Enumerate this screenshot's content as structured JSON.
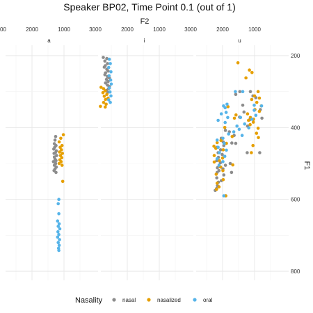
{
  "chart_data": {
    "type": "scatter",
    "title": "Speaker BP02, Time Point 0.1 (out of 1)",
    "xlabel": "F2",
    "ylabel": "F1",
    "x_reversed": true,
    "y_reversed": true,
    "xlim": [
      2000,
      3100
    ],
    "ylim": [
      180,
      820
    ],
    "x_ticks": [
      3000,
      2000,
      1000
    ],
    "y_ticks": [
      200,
      400,
      600,
      800
    ],
    "panels": [
      "a",
      "i",
      "u"
    ],
    "series_names": [
      "nasal",
      "nasalized",
      "oral"
    ],
    "legend_title": "Nasality",
    "legend_position": "bottom",
    "colors": {
      "nasal": "#8c8c8c",
      "nasalized": "#e69f00",
      "oral": "#56b4e9"
    },
    "points": {
      "a": {
        "nasal": [
          [
            1260,
            425
          ],
          [
            1280,
            435
          ],
          [
            1300,
            445
          ],
          [
            1250,
            450
          ],
          [
            1290,
            455
          ],
          [
            1320,
            460
          ],
          [
            1240,
            465
          ],
          [
            1270,
            470
          ],
          [
            1310,
            472
          ],
          [
            1230,
            478
          ],
          [
            1300,
            482
          ],
          [
            1280,
            488
          ],
          [
            1250,
            492
          ],
          [
            1330,
            495
          ],
          [
            1260,
            500
          ],
          [
            1300,
            505
          ],
          [
            1240,
            510
          ],
          [
            1280,
            515
          ],
          [
            1310,
            520
          ],
          [
            1250,
            525
          ]
        ],
        "nasalized": [
          [
            1020,
            420
          ],
          [
            1100,
            430
          ],
          [
            1150,
            440
          ],
          [
            1060,
            450
          ],
          [
            1120,
            455
          ],
          [
            1080,
            462
          ],
          [
            1140,
            468
          ],
          [
            1050,
            472
          ],
          [
            1110,
            478
          ],
          [
            1070,
            484
          ],
          [
            1130,
            490
          ],
          [
            1090,
            495
          ],
          [
            1150,
            500
          ],
          [
            1060,
            505
          ],
          [
            1040,
            550
          ]
        ],
        "oral": [
          [
            1160,
            600
          ],
          [
            1180,
            612
          ],
          [
            1160,
            640
          ],
          [
            1200,
            660
          ],
          [
            1150,
            668
          ],
          [
            1180,
            675
          ],
          [
            1130,
            682
          ],
          [
            1190,
            690
          ],
          [
            1160,
            698
          ],
          [
            1200,
            705
          ],
          [
            1140,
            712
          ],
          [
            1180,
            720
          ],
          [
            1150,
            728
          ],
          [
            1170,
            736
          ],
          [
            1160,
            742
          ]
        ]
      },
      "i": {
        "nasal": [
          [
            2750,
            205
          ],
          [
            2640,
            208
          ],
          [
            2700,
            215
          ],
          [
            2620,
            222
          ],
          [
            2690,
            228
          ],
          [
            2720,
            232
          ],
          [
            2640,
            238
          ],
          [
            2600,
            243
          ],
          [
            2680,
            248
          ],
          [
            2700,
            253
          ],
          [
            2620,
            258
          ],
          [
            2560,
            262
          ],
          [
            2650,
            266
          ],
          [
            2600,
            272
          ],
          [
            2680,
            276
          ],
          [
            2620,
            282
          ],
          [
            2560,
            286
          ],
          [
            2590,
            292
          ],
          [
            2650,
            297
          ],
          [
            2610,
            302
          ]
        ],
        "nasalized": [
          [
            2820,
            288
          ],
          [
            2740,
            292
          ],
          [
            2690,
            298
          ],
          [
            2760,
            303
          ],
          [
            2640,
            308
          ],
          [
            2720,
            313
          ],
          [
            2600,
            318
          ],
          [
            2680,
            322
          ],
          [
            2740,
            330
          ],
          [
            2660,
            335
          ],
          [
            2840,
            341
          ],
          [
            2690,
            343
          ]
        ],
        "oral": [
          [
            2560,
            210
          ],
          [
            2530,
            222
          ],
          [
            2580,
            233
          ],
          [
            2510,
            245
          ],
          [
            2570,
            256
          ],
          [
            2520,
            268
          ],
          [
            2500,
            279
          ],
          [
            2560,
            290
          ],
          [
            2540,
            301
          ],
          [
            2510,
            312
          ],
          [
            2580,
            323
          ],
          [
            2530,
            330
          ]
        ]
      },
      "u": {
        "nasal": [
          [
            1460,
            300
          ],
          [
            1130,
            300
          ],
          [
            1590,
            308
          ],
          [
            1050,
            312
          ],
          [
            960,
            317
          ],
          [
            1370,
            338
          ],
          [
            820,
            350
          ],
          [
            1330,
            357
          ],
          [
            1470,
            371
          ],
          [
            770,
            374
          ],
          [
            1150,
            378
          ],
          [
            1220,
            396
          ],
          [
            1910,
            408
          ],
          [
            1790,
            412
          ],
          [
            1640,
            422
          ],
          [
            2040,
            430
          ],
          [
            1980,
            440
          ],
          [
            1710,
            443
          ],
          [
            1590,
            444
          ],
          [
            1960,
            450
          ],
          [
            2170,
            455
          ],
          [
            2060,
            462
          ],
          [
            2140,
            470
          ],
          [
            2010,
            475
          ],
          [
            840,
            470
          ],
          [
            1230,
            470
          ],
          [
            2130,
            483
          ],
          [
            2180,
            492
          ],
          [
            2070,
            498
          ],
          [
            1760,
            500
          ],
          [
            1910,
            505
          ],
          [
            2160,
            512
          ],
          [
            1990,
            515
          ],
          [
            2110,
            520
          ],
          [
            2170,
            525
          ],
          [
            1720,
            525
          ],
          [
            1960,
            532
          ],
          [
            2180,
            540
          ],
          [
            2040,
            548
          ],
          [
            2130,
            552
          ],
          [
            2160,
            562
          ],
          [
            2190,
            570
          ],
          [
            2230,
            575
          ],
          [
            1900,
            590
          ]
        ],
        "nasalized": [
          [
            1520,
            220
          ],
          [
            1160,
            240
          ],
          [
            1080,
            247
          ],
          [
            1270,
            262
          ],
          [
            890,
            300
          ],
          [
            1000,
            312
          ],
          [
            850,
            318
          ],
          [
            1090,
            322
          ],
          [
            930,
            330
          ],
          [
            790,
            340
          ],
          [
            1830,
            342
          ],
          [
            990,
            350
          ],
          [
            850,
            355
          ],
          [
            1220,
            362
          ],
          [
            1580,
            365
          ],
          [
            1130,
            372
          ],
          [
            1030,
            377
          ],
          [
            1630,
            374
          ],
          [
            1190,
            380
          ],
          [
            1040,
            385
          ],
          [
            1140,
            392
          ],
          [
            890,
            402
          ],
          [
            1930,
            400
          ],
          [
            940,
            416
          ],
          [
            1700,
            425
          ],
          [
            880,
            428
          ],
          [
            2050,
            436
          ],
          [
            2170,
            442
          ],
          [
            1880,
            444
          ],
          [
            1050,
            450
          ],
          [
            2270,
            452
          ],
          [
            2210,
            458
          ],
          [
            1980,
            462
          ],
          [
            1100,
            470
          ],
          [
            2260,
            478
          ],
          [
            2000,
            485
          ],
          [
            2100,
            492
          ],
          [
            2260,
            496
          ],
          [
            1680,
            504
          ],
          [
            2060,
            510
          ],
          [
            1990,
            520
          ],
          [
            2200,
            530
          ],
          [
            1980,
            545
          ],
          [
            2170,
            555
          ],
          [
            2110,
            565
          ],
          [
            2190,
            572
          ],
          [
            1900,
            590
          ]
        ],
        "oral": [
          [
            1600,
            300
          ],
          [
            1370,
            300
          ],
          [
            1860,
            335
          ],
          [
            1970,
            340
          ],
          [
            1010,
            338
          ],
          [
            780,
            340
          ],
          [
            1920,
            345
          ],
          [
            1010,
            352
          ],
          [
            1890,
            358
          ],
          [
            2040,
            362
          ],
          [
            960,
            366
          ],
          [
            1840,
            372
          ],
          [
            1440,
            372
          ],
          [
            1080,
            377
          ],
          [
            2140,
            380
          ],
          [
            1920,
            386
          ],
          [
            1310,
            390
          ],
          [
            1550,
            396
          ],
          [
            1180,
            401
          ],
          [
            1480,
            405
          ],
          [
            1650,
            412
          ],
          [
            1810,
            418
          ],
          [
            1390,
            422
          ],
          [
            1990,
            430
          ],
          [
            2170,
            435
          ],
          [
            1950,
            444
          ],
          [
            2140,
            455
          ],
          [
            1880,
            463
          ],
          [
            2100,
            470
          ],
          [
            1930,
            480
          ],
          [
            2170,
            487
          ],
          [
            1990,
            495
          ],
          [
            2110,
            505
          ],
          [
            1960,
            590
          ]
        ]
      }
    }
  }
}
